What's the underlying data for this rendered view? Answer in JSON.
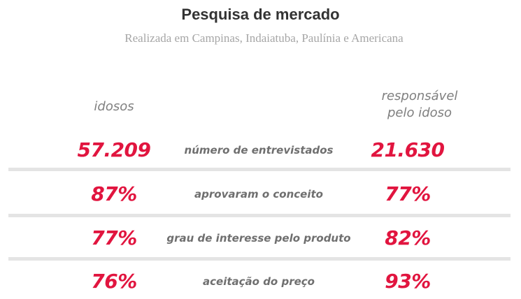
{
  "header": {
    "title": "Pesquisa de mercado",
    "subtitle": "Realizada em Campinas, Indaiatuba, Paulínia e Americana"
  },
  "columns": {
    "left": "idosos",
    "right_line1": "responsável",
    "right_line2": "pelo idoso"
  },
  "rows": [
    {
      "label": "número de entrevistados",
      "left": "57.209",
      "right": "21.630"
    },
    {
      "label": "aprovaram o conceito",
      "left": "87%",
      "right": "77%"
    },
    {
      "label": "grau de interesse pelo produto",
      "left": "77%",
      "right": "82%"
    },
    {
      "label": "aceitação do preço",
      "left": "76%",
      "right": "93%"
    }
  ],
  "colors": {
    "accent": "#e1153f",
    "label": "#6f6f6f",
    "divider": "#e4e4e4"
  }
}
